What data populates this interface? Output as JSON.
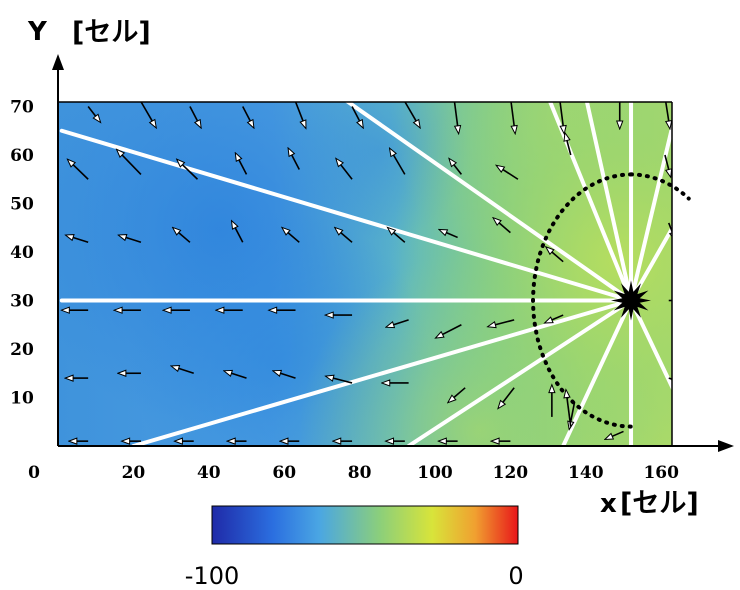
{
  "chart_data": {
    "type": "heatmap",
    "title": "",
    "xlabel": "x",
    "xunit": "[セル]",
    "ylabel": "Y",
    "yunit": "[セル]",
    "xlim": [
      0,
      163
    ],
    "ylim": [
      0,
      71
    ],
    "x_ticks": [
      "0",
      "20",
      "40",
      "60",
      "80",
      "100",
      "120",
      "140",
      "160"
    ],
    "y_ticks": [
      "10",
      "20",
      "30",
      "40",
      "50",
      "60",
      "70"
    ],
    "colorbar": {
      "min_label": "-100",
      "max_label": "0",
      "colors": [
        "#1f2aa8",
        "#2b7fe6",
        "#4aa6e3",
        "#8ccf7a",
        "#d8e43a",
        "#f0a030",
        "#e8161a"
      ]
    },
    "source_point": [
      152,
      30
    ],
    "rays": [
      [
        [
          1,
          30
        ],
        [
          152,
          30
        ]
      ],
      [
        [
          1,
          65
        ],
        [
          152,
          30
        ]
      ],
      [
        [
          75,
          72
        ],
        [
          152,
          30
        ]
      ],
      [
        [
          20,
          0
        ],
        [
          152,
          30
        ]
      ],
      [
        [
          93,
          0
        ],
        [
          152,
          30
        ]
      ],
      [
        [
          134,
          0
        ],
        [
          152,
          30
        ]
      ],
      [
        [
          130,
          72
        ],
        [
          152,
          30
        ]
      ],
      [
        [
          140,
          72
        ],
        [
          152,
          30
        ]
      ],
      [
        [
          152,
          72
        ],
        [
          152,
          30
        ]
      ],
      [
        [
          152,
          0
        ],
        [
          152,
          30
        ]
      ],
      [
        [
          163,
          66
        ],
        [
          152,
          30
        ]
      ],
      [
        [
          163,
          45
        ],
        [
          152,
          30
        ]
      ],
      [
        [
          163,
          12
        ],
        [
          152,
          30
        ]
      ]
    ],
    "boundary_radius": 26,
    "vectors": [
      {
        "x": 8,
        "y": 70,
        "dx": 2,
        "dy": -2
      },
      {
        "x": 22,
        "y": 71,
        "dx": 3,
        "dy": -4
      },
      {
        "x": 35,
        "y": 70,
        "dx": 2,
        "dy": -3
      },
      {
        "x": 49,
        "y": 70,
        "dx": 2,
        "dy": -3
      },
      {
        "x": 63,
        "y": 71,
        "dx": 2,
        "dy": -4
      },
      {
        "x": 78,
        "y": 70,
        "dx": 2,
        "dy": -3
      },
      {
        "x": 92,
        "y": 71,
        "dx": 3,
        "dy": -4
      },
      {
        "x": 105,
        "y": 72,
        "dx": 1,
        "dy": -6
      },
      {
        "x": 120,
        "y": 72,
        "dx": 1,
        "dy": -6
      },
      {
        "x": 133,
        "y": 72,
        "dx": 1,
        "dy": -6
      },
      {
        "x": 149,
        "y": 72,
        "dx": 0,
        "dy": -5
      },
      {
        "x": 161,
        "y": 72,
        "dx": 1,
        "dy": -5
      },
      {
        "x": 8,
        "y": 55,
        "dx": -4,
        "dy": 3
      },
      {
        "x": 22,
        "y": 56,
        "dx": -5,
        "dy": 4
      },
      {
        "x": 37,
        "y": 55,
        "dx": -4,
        "dy": 3
      },
      {
        "x": 50,
        "y": 56,
        "dx": -2,
        "dy": 3
      },
      {
        "x": 64,
        "y": 57,
        "dx": -2,
        "dy": 3
      },
      {
        "x": 78,
        "y": 55,
        "dx": -3,
        "dy": 3
      },
      {
        "x": 92,
        "y": 56,
        "dx": -3,
        "dy": 4
      },
      {
        "x": 107,
        "y": 56,
        "dx": -2,
        "dy": 2
      },
      {
        "x": 122,
        "y": 55,
        "dx": -4,
        "dy": 2
      },
      {
        "x": 136,
        "y": 60,
        "dx": -1,
        "dy": 3
      },
      {
        "x": 161,
        "y": 60,
        "dx": 1,
        "dy": -3
      },
      {
        "x": 8,
        "y": 42,
        "dx": -4,
        "dy": 1
      },
      {
        "x": 22,
        "y": 42,
        "dx": -4,
        "dy": 1
      },
      {
        "x": 35,
        "y": 42,
        "dx": -3,
        "dy": 2
      },
      {
        "x": 49,
        "y": 42,
        "dx": -2,
        "dy": 3
      },
      {
        "x": 64,
        "y": 42,
        "dx": -3,
        "dy": 2
      },
      {
        "x": 78,
        "y": 42,
        "dx": -3,
        "dy": 2
      },
      {
        "x": 92,
        "y": 42,
        "dx": -3,
        "dy": 2
      },
      {
        "x": 106,
        "y": 43,
        "dx": -3,
        "dy": 1
      },
      {
        "x": 120,
        "y": 44,
        "dx": -3,
        "dy": 2
      },
      {
        "x": 134,
        "y": 38,
        "dx": -3,
        "dy": 2
      },
      {
        "x": 162,
        "y": 46,
        "dx": 1,
        "dy": -2
      },
      {
        "x": 8,
        "y": 28,
        "dx": -5,
        "dy": 0
      },
      {
        "x": 22,
        "y": 28,
        "dx": -5,
        "dy": 0
      },
      {
        "x": 35,
        "y": 28,
        "dx": -5,
        "dy": 0
      },
      {
        "x": 49,
        "y": 28,
        "dx": -5,
        "dy": 0
      },
      {
        "x": 63,
        "y": 28,
        "dx": -5,
        "dy": 0
      },
      {
        "x": 78,
        "y": 27,
        "dx": -5,
        "dy": 0
      },
      {
        "x": 93,
        "y": 26,
        "dx": -4,
        "dy": -1
      },
      {
        "x": 107,
        "y": 25,
        "dx": -5,
        "dy": -2
      },
      {
        "x": 121,
        "y": 26,
        "dx": -5,
        "dy": -1
      },
      {
        "x": 134,
        "y": 27,
        "dx": -3,
        "dy": -1
      },
      {
        "x": 162,
        "y": 30,
        "dx": 1,
        "dy": 0
      },
      {
        "x": 8,
        "y": 14,
        "dx": -4,
        "dy": 0
      },
      {
        "x": 22,
        "y": 15,
        "dx": -4,
        "dy": 0
      },
      {
        "x": 36,
        "y": 15,
        "dx": -4,
        "dy": 1
      },
      {
        "x": 50,
        "y": 14,
        "dx": -4,
        "dy": 1
      },
      {
        "x": 63,
        "y": 14,
        "dx": -4,
        "dy": 1
      },
      {
        "x": 78,
        "y": 13,
        "dx": -5,
        "dy": 1
      },
      {
        "x": 93,
        "y": 13,
        "dx": -5,
        "dy": 0
      },
      {
        "x": 108,
        "y": 12,
        "dx": -3,
        "dy": -2
      },
      {
        "x": 121,
        "y": 12,
        "dx": -3,
        "dy": -3
      },
      {
        "x": 137,
        "y": 9,
        "dx": -1,
        "dy": -4
      },
      {
        "x": 162,
        "y": 14,
        "dx": 4,
        "dy": -1
      },
      {
        "x": 8,
        "y": 1,
        "dx": -3,
        "dy": 0
      },
      {
        "x": 22,
        "y": 1,
        "dx": -3,
        "dy": 0
      },
      {
        "x": 36,
        "y": 1,
        "dx": -3,
        "dy": 0
      },
      {
        "x": 50,
        "y": 1,
        "dx": -3,
        "dy": 0
      },
      {
        "x": 64,
        "y": 1,
        "dx": -3,
        "dy": 0
      },
      {
        "x": 78,
        "y": 1,
        "dx": -3,
        "dy": 0
      },
      {
        "x": 92,
        "y": 1,
        "dx": -3,
        "dy": 0
      },
      {
        "x": 106,
        "y": 1,
        "dx": -3,
        "dy": 0
      },
      {
        "x": 120,
        "y": 1,
        "dx": -3,
        "dy": 0
      },
      {
        "x": 131,
        "y": 6,
        "dx": 0,
        "dy": 5
      },
      {
        "x": 136,
        "y": 4,
        "dx": -1,
        "dy": 6
      },
      {
        "x": 150,
        "y": 3,
        "dx": -3,
        "dy": -1
      }
    ]
  }
}
